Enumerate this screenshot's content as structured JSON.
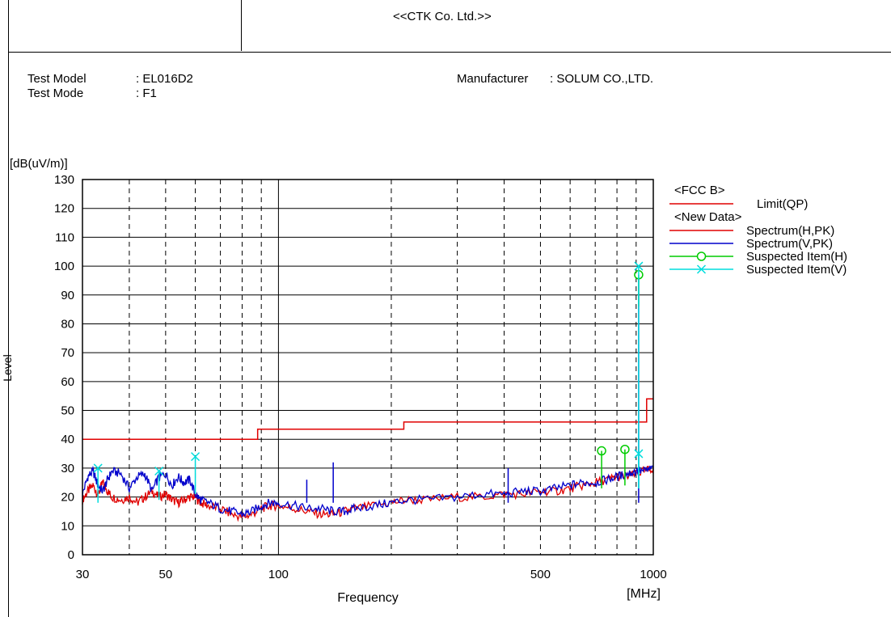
{
  "header": {
    "company": "<<CTK Co. Ltd.>>"
  },
  "info": {
    "model_label": "Test Model",
    "model_value": ": EL016D2",
    "mode_label": "Test Mode",
    "mode_value": ": F1",
    "manufacturer_label": "Manufacturer",
    "manufacturer_value": ": SOLUM CO.,LTD."
  },
  "chart_data": {
    "type": "line",
    "xscale": "log",
    "xlabel": "Frequency",
    "xunit": "[MHz]",
    "ylabel": "Level",
    "yunit": "[dB(uV/m)]",
    "xlim": [
      30,
      1000
    ],
    "ylim": [
      0,
      130
    ],
    "xticks": [
      30,
      50,
      100,
      500,
      1000
    ],
    "xtick_labels": [
      "30",
      "50",
      "100",
      "500",
      "1000"
    ],
    "yticks": [
      0,
      10,
      20,
      30,
      40,
      50,
      60,
      70,
      80,
      90,
      100,
      110,
      120,
      130
    ],
    "grid": true,
    "legend": {
      "position": "right",
      "groups": [
        {
          "title": "<FCC B>",
          "items": [
            {
              "name": "Limit(QP)",
              "color": "#e00000",
              "marker": "none"
            }
          ]
        },
        {
          "title": "<New Data>",
          "items": [
            {
              "name": "Spectrum(H,PK)",
              "color": "#e00000",
              "marker": "none"
            },
            {
              "name": "Spectrum(V,PK)",
              "color": "#0000cc",
              "marker": "none"
            },
            {
              "name": "Suspected Item(H)",
              "color": "#00cc00",
              "marker": "circle"
            },
            {
              "name": "Suspected Item(V)",
              "color": "#00dddd",
              "marker": "x"
            }
          ]
        }
      ]
    },
    "limit": {
      "name": "Limit(QP)",
      "color": "#e00000",
      "x": [
        30,
        88,
        88,
        216,
        216,
        960,
        960,
        1000
      ],
      "y": [
        40,
        40,
        43.5,
        43.5,
        46,
        46,
        54,
        54
      ]
    },
    "series": [
      {
        "name": "Spectrum(H,PK)",
        "color": "#e00000",
        "x": [
          30,
          31,
          32,
          33,
          34,
          35,
          36,
          38,
          40,
          42,
          44,
          46,
          48,
          50,
          52,
          54,
          56,
          58,
          60,
          62,
          65,
          70,
          75,
          80,
          85,
          90,
          95,
          100,
          110,
          120,
          130,
          140,
          150,
          160,
          180,
          200,
          220,
          250,
          300,
          350,
          400,
          450,
          500,
          550,
          600,
          650,
          700,
          750,
          800,
          850,
          900,
          950,
          1000
        ],
        "y": [
          19,
          22,
          24,
          21,
          25,
          22,
          20,
          19,
          20,
          18,
          20,
          22,
          20,
          21,
          19,
          18,
          19,
          20,
          20,
          18,
          17,
          16,
          14,
          13,
          14,
          16,
          17,
          17,
          16,
          15,
          14,
          14,
          15,
          16,
          17,
          18,
          19,
          19,
          20,
          20,
          21,
          21,
          22,
          22,
          23,
          24,
          25,
          26,
          27,
          27,
          28,
          29,
          30
        ]
      },
      {
        "name": "Spectrum(V,PK)",
        "color": "#0000cc",
        "x": [
          30,
          31,
          32,
          33,
          34,
          35,
          36,
          38,
          40,
          42,
          44,
          46,
          48,
          50,
          52,
          54,
          56,
          58,
          60,
          62,
          65,
          70,
          75,
          80,
          85,
          90,
          95,
          100,
          110,
          120,
          130,
          140,
          150,
          160,
          180,
          200,
          220,
          250,
          300,
          350,
          400,
          450,
          500,
          550,
          600,
          650,
          700,
          750,
          800,
          850,
          900,
          950,
          1000
        ],
        "y": [
          21,
          27,
          29,
          24,
          22,
          26,
          29,
          28,
          23,
          27,
          28,
          22,
          27,
          28,
          24,
          27,
          25,
          26,
          21,
          19,
          18,
          16,
          15,
          14,
          15,
          17,
          18,
          18,
          17,
          16,
          16,
          15,
          15,
          16,
          17,
          18,
          19,
          19,
          20,
          21,
          21,
          22,
          22,
          23,
          24,
          25,
          25,
          26,
          27,
          28,
          29,
          29,
          30
        ]
      }
    ],
    "spikes": [
      {
        "series": "Spectrum(V,PK)",
        "x": 119,
        "y": 26
      },
      {
        "series": "Spectrum(V,PK)",
        "x": 140,
        "y": 32
      },
      {
        "series": "Spectrum(V,PK)",
        "x": 410,
        "y": 30
      },
      {
        "series": "Spectrum(V,PK)",
        "x": 914,
        "y": 96
      }
    ],
    "suspected": [
      {
        "series": "Suspected Item(H)",
        "x": 728,
        "y": 36,
        "floor": 23
      },
      {
        "series": "Suspected Item(H)",
        "x": 840,
        "y": 36.5,
        "floor": 24
      },
      {
        "series": "Suspected Item(H)",
        "x": 914,
        "y": 97,
        "floor": 86
      },
      {
        "series": "Suspected Item(V)",
        "x": 33,
        "y": 30,
        "floor": 18
      },
      {
        "series": "Suspected Item(V)",
        "x": 48,
        "y": 29,
        "floor": 19
      },
      {
        "series": "Suspected Item(V)",
        "x": 60,
        "y": 34,
        "floor": 21
      },
      {
        "series": "Suspected Item(V)",
        "x": 914,
        "y": 100,
        "floor": 23
      },
      {
        "series": "Suspected Item(V)",
        "x": 914,
        "y": 35,
        "floor": 23
      }
    ]
  }
}
